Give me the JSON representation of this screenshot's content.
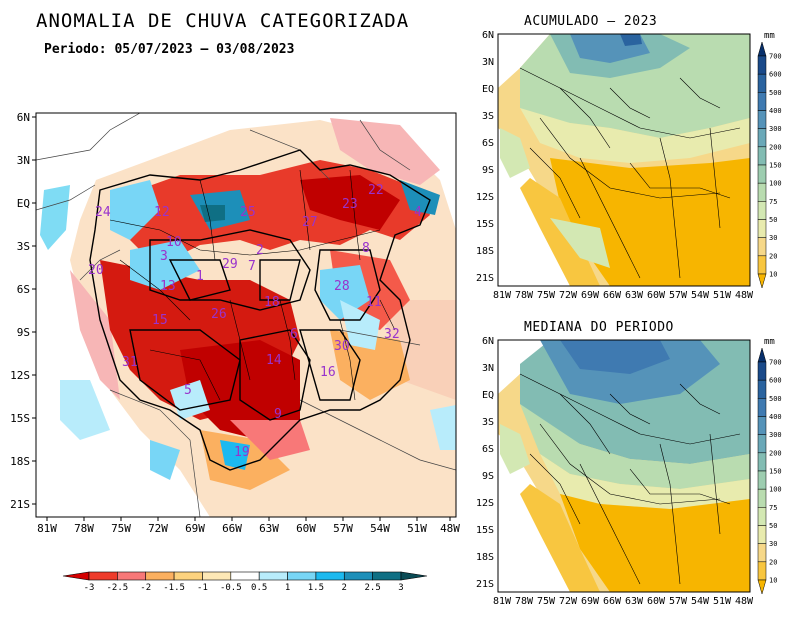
{
  "main": {
    "title": "ANOMALIA DE CHUVA CATEGORIZADA",
    "subtitle": "Periodo: 05/07/2023 – 03/08/2023",
    "lat_ticks": [
      "6N",
      "3N",
      "EQ",
      "3S",
      "6S",
      "9S",
      "12S",
      "15S",
      "18S",
      "21S"
    ],
    "lon_ticks": [
      "81W",
      "78W",
      "75W",
      "72W",
      "69W",
      "66W",
      "63W",
      "60W",
      "57W",
      "54W",
      "51W",
      "48W"
    ],
    "basin_labels": [
      "24",
      "12",
      "25",
      "27",
      "23",
      "22",
      "4",
      "10",
      "3",
      "1",
      "29",
      "7",
      "2",
      "8",
      "20",
      "13",
      "28",
      "11",
      "18",
      "15",
      "26",
      "32",
      "6",
      "30",
      "31",
      "14",
      "16",
      "5",
      "9",
      "19"
    ],
    "colorbar": {
      "ticks": [
        "-3",
        "-2.5",
        "-2",
        "-1.5",
        "-1",
        "-0.5",
        "0.5",
        "1",
        "1.5",
        "2",
        "2.5",
        "3"
      ],
      "colors": [
        "#d40000",
        "#ee3b2b",
        "#f87878",
        "#fbb060",
        "#fcd27e",
        "#fde8b6",
        "#ffffff",
        "#b8ecfb",
        "#78d6f6",
        "#1cb9ef",
        "#1d8fb9",
        "#0f6f84",
        "#0b4b55"
      ]
    }
  },
  "panels": [
    {
      "title": "ACUMULADO – 2023"
    },
    {
      "title": "MEDIANA DO PERIODO"
    }
  ],
  "small_map": {
    "lat_ticks": [
      "6N",
      "3N",
      "EQ",
      "3S",
      "6S",
      "9S",
      "12S",
      "15S",
      "18S",
      "21S"
    ],
    "lon_ticks": [
      "81W",
      "78W",
      "75W",
      "72W",
      "69W",
      "66W",
      "63W",
      "60W",
      "57W",
      "54W",
      "51W",
      "48W"
    ],
    "colorbar_unit": "mm",
    "colorbar_ticks": [
      "700",
      "600",
      "500",
      "400",
      "300",
      "200",
      "150",
      "100",
      "75",
      "50",
      "30",
      "20",
      "10"
    ],
    "colorbar_colors": [
      "#08306b",
      "#1a4a8a",
      "#2a639f",
      "#3f7ab1",
      "#5593b9",
      "#6aa8b8",
      "#82bcb3",
      "#9dcdb0",
      "#b9dcb0",
      "#d3e8b3",
      "#e8ebae",
      "#f6d889",
      "#f8c640",
      "#f7b500"
    ]
  }
}
